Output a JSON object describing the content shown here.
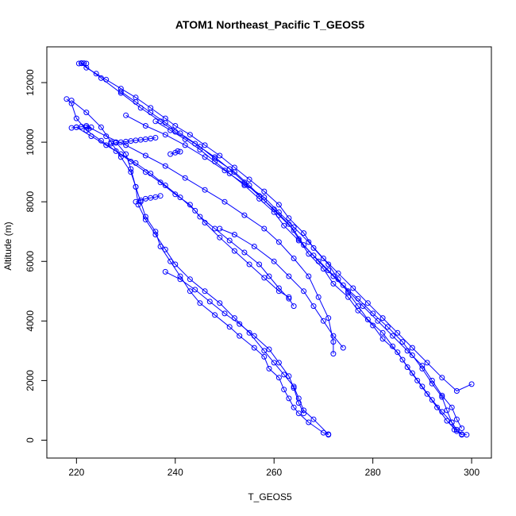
{
  "chart_data": {
    "type": "scatter",
    "title": "ATOM1 Northeast_Pacific T_GEOS5",
    "xlabel": "T_GEOS5",
    "ylabel": "Altitude (m)",
    "xlim": [
      214,
      304
    ],
    "ylim": [
      -600,
      13200
    ],
    "x_ticks": [
      220,
      240,
      260,
      280,
      300
    ],
    "y_ticks": [
      0,
      2000,
      4000,
      6000,
      8000,
      10000,
      12000
    ],
    "grid": false,
    "legend": "none",
    "marker": "open-circle",
    "color": "#0000ff",
    "series": [
      {
        "points": [
          [
            221,
            12650
          ],
          [
            222,
            12500
          ],
          [
            224,
            12300
          ],
          [
            226,
            12100
          ],
          [
            229,
            11800
          ],
          [
            232,
            11500
          ],
          [
            235,
            11150
          ],
          [
            238,
            10800
          ],
          [
            240,
            10550
          ],
          [
            243,
            10250
          ],
          [
            246,
            9900
          ],
          [
            249,
            9550
          ],
          [
            252,
            9150
          ],
          [
            255,
            8750
          ],
          [
            258,
            8350
          ],
          [
            261,
            7900
          ],
          [
            263,
            7450
          ],
          [
            266,
            6950
          ],
          [
            268,
            6450
          ],
          [
            271,
            5900
          ],
          [
            273,
            5400
          ],
          [
            275,
            4950
          ],
          [
            277,
            4500
          ],
          [
            279,
            4050
          ],
          [
            282,
            3600
          ],
          [
            284,
            3150
          ],
          [
            286,
            2700
          ],
          [
            288,
            2250
          ],
          [
            290,
            1800
          ],
          [
            292,
            1350
          ],
          [
            294,
            950
          ],
          [
            296,
            600
          ],
          [
            297,
            350
          ],
          [
            298,
            200
          ],
          [
            299,
            180
          ]
        ]
      },
      {
        "points": [
          [
            221,
            12650
          ],
          [
            225,
            12150
          ],
          [
            229,
            11650
          ],
          [
            233,
            11150
          ],
          [
            237,
            10700
          ],
          [
            240,
            10350
          ],
          [
            244,
            9950
          ],
          [
            248,
            9500
          ],
          [
            251,
            9100
          ],
          [
            254,
            8650
          ],
          [
            257,
            8200
          ],
          [
            260,
            7750
          ],
          [
            263,
            7250
          ],
          [
            265,
            6750
          ],
          [
            267,
            6250
          ],
          [
            270,
            5750
          ],
          [
            272,
            5250
          ],
          [
            275,
            4800
          ],
          [
            277,
            4350
          ],
          [
            280,
            3850
          ],
          [
            282,
            3400
          ],
          [
            285,
            2950
          ],
          [
            287,
            2450
          ],
          [
            289,
            2000
          ],
          [
            291,
            1550
          ],
          [
            293,
            1100
          ],
          [
            295,
            650
          ],
          [
            297,
            300
          ],
          [
            298,
            180
          ]
        ]
      },
      {
        "points": [
          [
            229,
            11700
          ],
          [
            232,
            11350
          ],
          [
            235,
            11000
          ],
          [
            238,
            10650
          ],
          [
            241,
            10300
          ],
          [
            245,
            9850
          ],
          [
            248,
            9450
          ],
          [
            252,
            9000
          ],
          [
            255,
            8550
          ],
          [
            258,
            8050
          ],
          [
            261,
            7550
          ],
          [
            264,
            7050
          ],
          [
            266,
            6550
          ],
          [
            269,
            6000
          ],
          [
            272,
            5500
          ],
          [
            275,
            5000
          ],
          [
            278,
            4500
          ],
          [
            281,
            4000
          ],
          [
            284,
            3500
          ],
          [
            287,
            3000
          ],
          [
            290,
            2500
          ],
          [
            292,
            2000
          ],
          [
            294,
            1500
          ],
          [
            296,
            1100
          ],
          [
            297,
            700
          ],
          [
            298,
            400
          ]
        ]
      },
      {
        "points": [
          [
            236,
            10700
          ],
          [
            239,
            10400
          ],
          [
            242,
            10100
          ],
          [
            245,
            9750
          ],
          [
            248,
            9350
          ],
          [
            251,
            8950
          ],
          [
            254,
            8550
          ],
          [
            257,
            8100
          ],
          [
            260,
            7650
          ],
          [
            262,
            7200
          ],
          [
            265,
            6700
          ],
          [
            268,
            6200
          ],
          [
            271,
            5700
          ],
          [
            274,
            5200
          ],
          [
            277,
            4750
          ],
          [
            280,
            4250
          ],
          [
            283,
            3800
          ],
          [
            286,
            3300
          ],
          [
            288,
            2850
          ],
          [
            290,
            2400
          ],
          [
            292,
            1900
          ],
          [
            294,
            1450
          ],
          [
            295,
            1000
          ],
          [
            296,
            600
          ],
          [
            296.5,
            350
          ]
        ]
      },
      {
        "points": [
          [
            230,
            10900
          ],
          [
            234,
            10550
          ],
          [
            238,
            10250
          ],
          [
            242,
            9900
          ],
          [
            246,
            9500
          ],
          [
            250,
            9050
          ],
          [
            254,
            8600
          ],
          [
            258,
            8150
          ],
          [
            261,
            7650
          ],
          [
            264,
            7150
          ],
          [
            267,
            6650
          ],
          [
            270,
            6100
          ],
          [
            273,
            5600
          ],
          [
            276,
            5100
          ],
          [
            279,
            4600
          ],
          [
            282,
            4100
          ],
          [
            285,
            3600
          ],
          [
            288,
            3100
          ],
          [
            291,
            2600
          ],
          [
            294,
            2100
          ],
          [
            297,
            1650
          ],
          [
            300,
            1880
          ]
        ]
      },
      {
        "points": [
          [
            218,
            11450
          ],
          [
            219,
            11300
          ],
          [
            220,
            10800
          ],
          [
            222,
            10400
          ],
          [
            225,
            10050
          ],
          [
            228,
            9700
          ],
          [
            231,
            9350
          ],
          [
            234,
            9000
          ],
          [
            237,
            8650
          ],
          [
            240,
            8250
          ],
          [
            243,
            7900
          ],
          [
            245,
            7500
          ],
          [
            248,
            7100
          ],
          [
            251,
            6700
          ],
          [
            254,
            6300
          ],
          [
            257,
            5900
          ],
          [
            259,
            5500
          ],
          [
            261,
            5100
          ],
          [
            263,
            4750
          ],
          [
            264,
            4500
          ]
        ]
      },
      {
        "points": [
          [
            220,
            10500
          ],
          [
            223,
            10200
          ],
          [
            226,
            9900
          ],
          [
            229,
            9600
          ],
          [
            232,
            9300
          ],
          [
            235,
            8950
          ],
          [
            238,
            8550
          ],
          [
            241,
            8150
          ],
          [
            244,
            7700
          ],
          [
            246,
            7300
          ],
          [
            249,
            6800
          ],
          [
            252,
            6350
          ],
          [
            255,
            5900
          ],
          [
            258,
            5450
          ],
          [
            261,
            5000
          ],
          [
            263,
            4800
          ]
        ]
      },
      {
        "points": [
          [
            222,
            10550
          ],
          [
            226,
            10200
          ],
          [
            230,
            9900
          ],
          [
            234,
            9550
          ],
          [
            238,
            9200
          ],
          [
            242,
            8800
          ],
          [
            246,
            8400
          ],
          [
            250,
            8000
          ],
          [
            254,
            7550
          ],
          [
            258,
            7100
          ],
          [
            261,
            6650
          ],
          [
            264,
            6100
          ],
          [
            267,
            5500
          ],
          [
            269,
            4800
          ],
          [
            271,
            4100
          ],
          [
            272,
            3300
          ],
          [
            272,
            2900
          ]
        ]
      },
      {
        "points": [
          [
            249,
            7100
          ],
          [
            252,
            6900
          ],
          [
            256,
            6500
          ],
          [
            260,
            6000
          ],
          [
            263,
            5500
          ],
          [
            266,
            5000
          ],
          [
            268,
            4500
          ],
          [
            270,
            4000
          ],
          [
            272,
            3500
          ],
          [
            274,
            3100
          ]
        ]
      },
      {
        "points": [
          [
            219,
            11400
          ],
          [
            222,
            11000
          ],
          [
            225,
            10500
          ],
          [
            227,
            10000
          ],
          [
            229,
            9500
          ],
          [
            231,
            9000
          ],
          [
            232,
            8500
          ],
          [
            233,
            8000
          ],
          [
            234,
            7500
          ],
          [
            236,
            7000
          ],
          [
            237,
            6500
          ],
          [
            239,
            6000
          ],
          [
            241,
            5500
          ],
          [
            243,
            5000
          ],
          [
            245,
            4600
          ],
          [
            248,
            4200
          ],
          [
            251,
            3800
          ],
          [
            253,
            3500
          ],
          [
            256,
            3100
          ],
          [
            258,
            2800
          ],
          [
            259,
            2400
          ],
          [
            261,
            2100
          ],
          [
            262,
            1700
          ],
          [
            263,
            1400
          ],
          [
            264,
            1100
          ],
          [
            265,
            900
          ],
          [
            267,
            600
          ],
          [
            270,
            250
          ],
          [
            271,
            180
          ]
        ]
      },
      {
        "points": [
          [
            228,
            10000
          ],
          [
            230,
            9600
          ],
          [
            231,
            9100
          ],
          [
            232,
            8500
          ],
          [
            232.5,
            7900
          ],
          [
            234,
            7400
          ],
          [
            236,
            6900
          ],
          [
            238,
            6400
          ],
          [
            240,
            5900
          ],
          [
            243,
            5400
          ],
          [
            246,
            5000
          ],
          [
            249,
            4600
          ],
          [
            252,
            4100
          ],
          [
            255,
            3600
          ],
          [
            258,
            3000
          ],
          [
            260,
            2600
          ],
          [
            262,
            2200
          ],
          [
            264,
            1800
          ],
          [
            265,
            1400
          ],
          [
            266,
            1000
          ],
          [
            268,
            700
          ],
          [
            271,
            200
          ]
        ]
      },
      {
        "points": [
          [
            238,
            5650
          ],
          [
            241,
            5400
          ],
          [
            244,
            5050
          ],
          [
            247,
            4650
          ],
          [
            250,
            4250
          ],
          [
            253,
            3900
          ],
          [
            256,
            3500
          ],
          [
            259,
            3050
          ],
          [
            261,
            2600
          ],
          [
            263,
            2150
          ],
          [
            264,
            1750
          ],
          [
            265,
            1250
          ],
          [
            266,
            900
          ]
        ]
      },
      {
        "points": [
          [
            227,
            9950
          ],
          [
            228,
            9980
          ],
          [
            229,
            10000
          ],
          [
            230,
            10020
          ],
          [
            231,
            10040
          ],
          [
            232,
            10060
          ],
          [
            233,
            10080
          ],
          [
            234,
            10100
          ],
          [
            235,
            10120
          ],
          [
            236,
            10150
          ]
        ]
      },
      {
        "points": [
          [
            232,
            8000
          ],
          [
            233,
            8050
          ],
          [
            234,
            8100
          ],
          [
            235,
            8130
          ],
          [
            236,
            8160
          ],
          [
            237,
            8200
          ]
        ]
      },
      {
        "points": [
          [
            219,
            10480
          ],
          [
            220,
            10500
          ],
          [
            221,
            10520
          ],
          [
            222,
            10500
          ],
          [
            222.5,
            10450
          ],
          [
            223,
            10500
          ]
        ]
      },
      {
        "points": [
          [
            239,
            9600
          ],
          [
            240,
            9650
          ],
          [
            240.5,
            9700
          ],
          [
            241,
            9680
          ]
        ]
      },
      {
        "points": [
          [
            220.5,
            12640
          ],
          [
            221,
            12650
          ],
          [
            221.5,
            12650
          ],
          [
            222,
            12640
          ]
        ]
      }
    ]
  }
}
